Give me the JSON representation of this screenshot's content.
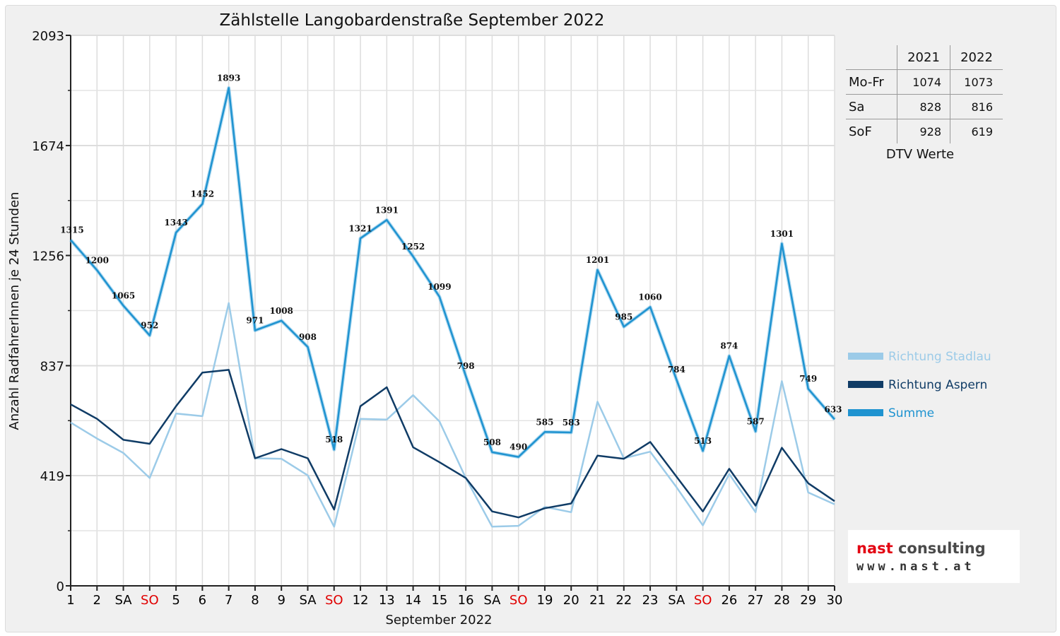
{
  "chart_data": {
    "type": "line",
    "title": "Zählstelle Langobardenstraße September 2022",
    "xlabel": "September 2022",
    "ylabel": "Anzahl RadfahrerInnen je 24 Stunden",
    "ylim": [
      0,
      2093
    ],
    "yticks": [
      "0",
      "419",
      "837",
      "1256",
      "1674",
      "2093"
    ],
    "grid": true,
    "legend_position": "right",
    "categories": [
      "1",
      "2",
      "SA",
      "SO",
      "5",
      "6",
      "7",
      "8",
      "9",
      "SA",
      "SO",
      "12",
      "13",
      "14",
      "15",
      "16",
      "SA",
      "SO",
      "19",
      "20",
      "21",
      "22",
      "23",
      "SA",
      "SO",
      "26",
      "27",
      "28",
      "29",
      "30"
    ],
    "category_colors": [
      "#000000",
      "#000000",
      "#000000",
      "#e00000",
      "#000000",
      "#000000",
      "#000000",
      "#000000",
      "#000000",
      "#000000",
      "#e00000",
      "#000000",
      "#000000",
      "#000000",
      "#000000",
      "#000000",
      "#000000",
      "#e00000",
      "#000000",
      "#000000",
      "#000000",
      "#000000",
      "#000000",
      "#000000",
      "#e00000",
      "#000000",
      "#000000",
      "#000000",
      "#000000",
      "#000000"
    ],
    "series": [
      {
        "name": "Richtung Stadlau",
        "color": "#9ccbe8",
        "values": [
          621,
          560,
          505,
          410,
          655,
          645,
          1075,
          485,
          483,
          420,
          225,
          635,
          632,
          725,
          625,
          410,
          225,
          228,
          300,
          280,
          700,
          485,
          510,
          375,
          230,
          425,
          280,
          778,
          355,
          310
        ]
      },
      {
        "name": "Richtung Aspern",
        "color": "#103c66",
        "values": [
          690,
          635,
          555,
          540,
          683,
          811,
          821,
          485,
          520,
          485,
          290,
          683,
          755,
          527,
          470,
          410,
          283,
          260,
          295,
          313,
          495,
          483,
          547,
          415,
          283,
          445,
          305,
          525,
          390,
          322
        ]
      },
      {
        "name": "Summe",
        "color": "#1f93d0",
        "values": [
          1315,
          1200,
          1065,
          952,
          1343,
          1452,
          1893,
          971,
          1008,
          908,
          518,
          1321,
          1391,
          1252,
          1099,
          798,
          508,
          490,
          585,
          583,
          1201,
          985,
          1060,
          784,
          513,
          874,
          587,
          1301,
          749,
          633
        ],
        "labels": [
          "1315",
          "1200",
          "1065",
          "952",
          "1343",
          "1452",
          "1893",
          "971",
          "1008",
          "908",
          "518",
          "1321",
          "1391",
          "1252",
          "1099",
          "798",
          "508",
          "490",
          "585",
          "583",
          "1201",
          "985",
          "1060",
          "784",
          "513",
          "874",
          "587",
          "1301",
          "749",
          "633"
        ]
      }
    ]
  },
  "dtv": {
    "caption": "DTV Werte",
    "columns": [
      "2021",
      "2022"
    ],
    "rows": [
      {
        "label": "Mo-Fr",
        "v2021": "1074",
        "v2022": "1073"
      },
      {
        "label": "Sa",
        "v2021": "828",
        "v2022": "816"
      },
      {
        "label": "SoF",
        "v2021": "928",
        "v2022": "619"
      }
    ]
  },
  "logo": {
    "name_part1": "nast",
    "name_part2": " consulting",
    "url": "www.nast.at"
  }
}
